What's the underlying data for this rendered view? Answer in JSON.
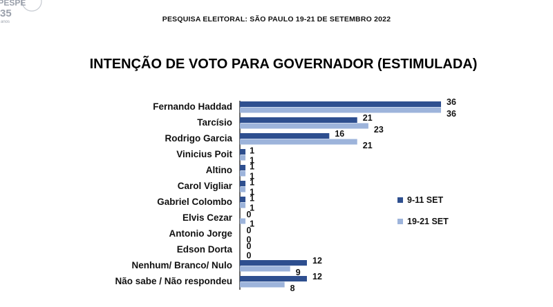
{
  "header": {
    "logo_text": "IPESPE",
    "logo_years": "35",
    "logo_years_word": "anos",
    "survey_title": "PESQUISA ELEITORAL: SÃO PAULO 19-21 DE SETEMBRO 2022"
  },
  "colors": {
    "series_1": "#2e4f8f",
    "series_2": "#9db4db",
    "axis": "#000000",
    "logo": "#9aa0ab"
  },
  "chart_data": {
    "type": "bar",
    "orientation": "horizontal",
    "title": "INTENÇÃO DE VOTO PARA GOVERNADOR (ESTIMULADA)",
    "categories": [
      "Fernando Haddad",
      "Tarcísio",
      "Rodrigo Garcia",
      "Vinicius Poit",
      "Altino",
      "Carol Vigliar",
      "Gabriel Colombo",
      "Elvis Cezar",
      "Antonio Jorge",
      "Edson Dorta",
      "Nenhum/ Branco/ Nulo",
      "Não sabe / Não respondeu"
    ],
    "series": [
      {
        "name": "9-11 SET",
        "values": [
          36,
          21,
          16,
          1,
          1,
          1,
          1,
          0,
          0,
          0,
          12,
          12
        ]
      },
      {
        "name": "19-21 SET",
        "values": [
          36,
          23,
          21,
          1,
          1,
          1,
          1,
          1,
          0,
          0,
          9,
          8
        ]
      }
    ],
    "legend_position": "right",
    "grid": false,
    "xlim": [
      0,
      36
    ]
  }
}
